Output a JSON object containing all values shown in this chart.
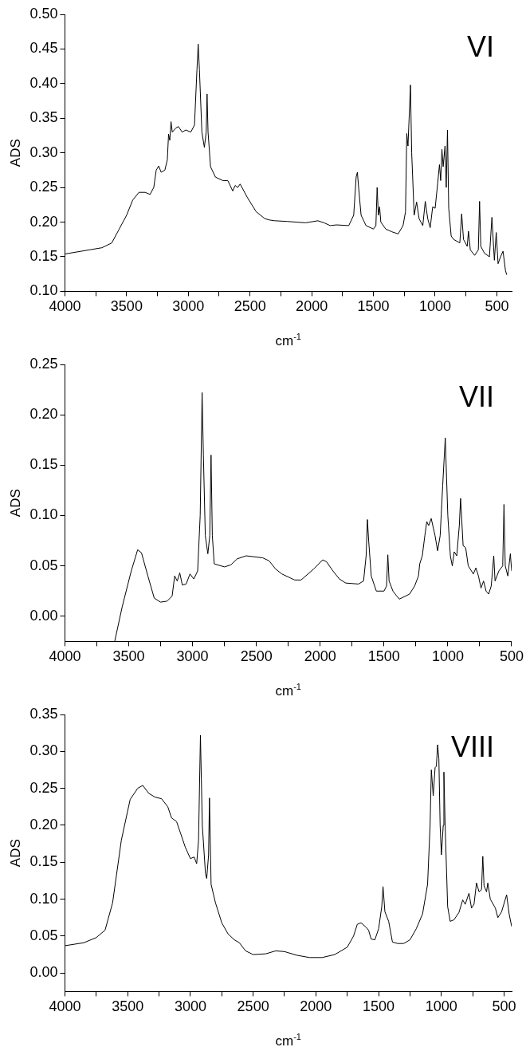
{
  "chart_data": [
    {
      "type": "line",
      "title": "VI",
      "xlabel": "cm$^{-1}$",
      "ylabel": "ADS",
      "xlim": [
        4000,
        380
      ],
      "ylim": [
        0.1,
        0.5
      ],
      "xticks": [
        4000,
        {
          "value": 3750,
          "label": null
        },
        3500,
        {
          "value": 3250,
          "label": null
        },
        3000,
        {
          "value": 2750,
          "label": null
        },
        2500,
        {
          "value": 2250,
          "label": null
        },
        2000,
        {
          "value": 1750,
          "label": null
        },
        1500,
        {
          "value": 1250,
          "label": null
        },
        1000,
        {
          "value": 750,
          "label": null
        },
        500
      ],
      "yticks": [
        {
          "value": 0.1,
          "label": "0.10"
        },
        0.15,
        {
          "value": 0.2,
          "label": "0.20"
        },
        0.25,
        {
          "value": 0.3,
          "label": "0.30"
        },
        0.35,
        {
          "value": 0.4,
          "label": "0.40"
        },
        0.45,
        {
          "value": 0.5,
          "label": "0.50"
        }
      ],
      "series": [
        {
          "color": "#000000",
          "x": [
            4000,
            3800,
            3700,
            3620,
            3560,
            3500,
            3450,
            3400,
            3350,
            3310,
            3280,
            3260,
            3240,
            3220,
            3190,
            3170,
            3160,
            3150,
            3140,
            3130,
            3100,
            3080,
            3050,
            3020,
            2980,
            2950,
            2930,
            2920,
            2910,
            2890,
            2870,
            2855,
            2848,
            2840,
            2820,
            2780,
            2720,
            2680,
            2640,
            2620,
            2600,
            2580,
            2520,
            2450,
            2380,
            2340,
            2300,
            2200,
            2050,
            1950,
            1900,
            1850,
            1800,
            1700,
            1660,
            1640,
            1630,
            1620,
            1600,
            1560,
            1500,
            1480,
            1470,
            1460,
            1450,
            1440,
            1400,
            1350,
            1300,
            1260,
            1240,
            1230,
            1220,
            1200,
            1190,
            1170,
            1150,
            1130,
            1100,
            1080,
            1060,
            1040,
            1020,
            1000,
            980,
            965,
            955,
            945,
            935,
            920,
            910,
            900,
            890,
            870,
            850,
            800,
            785,
            770,
            740,
            730,
            715,
            680,
            650,
            640,
            630,
            600,
            560,
            540,
            520,
            505,
            490,
            470,
            450,
            430,
            420
          ],
          "values": [
            0.154,
            0.16,
            0.163,
            0.17,
            0.19,
            0.21,
            0.232,
            0.243,
            0.243,
            0.24,
            0.25,
            0.275,
            0.281,
            0.272,
            0.275,
            0.29,
            0.327,
            0.318,
            0.345,
            0.33,
            0.336,
            0.338,
            0.33,
            0.333,
            0.33,
            0.34,
            0.42,
            0.457,
            0.42,
            0.33,
            0.308,
            0.33,
            0.385,
            0.33,
            0.28,
            0.265,
            0.26,
            0.26,
            0.245,
            0.253,
            0.25,
            0.255,
            0.235,
            0.215,
            0.205,
            0.203,
            0.202,
            0.201,
            0.199,
            0.202,
            0.199,
            0.195,
            0.196,
            0.195,
            0.21,
            0.265,
            0.272,
            0.25,
            0.21,
            0.195,
            0.19,
            0.195,
            0.25,
            0.21,
            0.222,
            0.2,
            0.19,
            0.186,
            0.183,
            0.195,
            0.215,
            0.328,
            0.31,
            0.398,
            0.3,
            0.21,
            0.229,
            0.205,
            0.195,
            0.23,
            0.205,
            0.192,
            0.222,
            0.22,
            0.255,
            0.283,
            0.26,
            0.305,
            0.28,
            0.31,
            0.25,
            0.333,
            0.22,
            0.18,
            0.175,
            0.17,
            0.212,
            0.175,
            0.165,
            0.187,
            0.16,
            0.152,
            0.16,
            0.23,
            0.165,
            0.155,
            0.15,
            0.207,
            0.145,
            0.185,
            0.14,
            0.15,
            0.158,
            0.13,
            0.124
          ]
        }
      ]
    },
    {
      "type": "line",
      "title": "VII",
      "xlabel": "cm$^{-1}$",
      "ylabel": "ADS",
      "xlim": [
        4000,
        500
      ],
      "ylim": [
        -0.025,
        0.25
      ],
      "xticks": [
        4000,
        {
          "value": 3750,
          "label": null
        },
        3500,
        {
          "value": 3250,
          "label": null
        },
        3000,
        {
          "value": 2750,
          "label": null
        },
        2500,
        {
          "value": 2250,
          "label": null
        },
        2000,
        {
          "value": 1750,
          "label": null
        },
        1500,
        {
          "value": 1250,
          "label": null
        },
        1000,
        {
          "value": 750,
          "label": null
        },
        500
      ],
      "yticks": [
        {
          "value": 0,
          "label": "0.00"
        },
        0.05,
        {
          "value": 0.1,
          "label": "0.10"
        },
        0.15,
        {
          "value": 0.2,
          "label": "0.20"
        },
        0.25
      ],
      "series": [
        {
          "color": "#000000",
          "x": [
            3610,
            3550,
            3480,
            3430,
            3400,
            3350,
            3300,
            3250,
            3200,
            3160,
            3140,
            3120,
            3100,
            3080,
            3050,
            3020,
            2990,
            2960,
            2940,
            2925,
            2915,
            2900,
            2880,
            2865,
            2855,
            2845,
            2830,
            2750,
            2700,
            2650,
            2580,
            2450,
            2400,
            2350,
            2300,
            2200,
            2150,
            2050,
            1980,
            1950,
            1900,
            1850,
            1800,
            1700,
            1660,
            1640,
            1630,
            1620,
            1600,
            1560,
            1500,
            1480,
            1470,
            1460,
            1430,
            1400,
            1380,
            1300,
            1260,
            1230,
            1220,
            1200,
            1180,
            1165,
            1150,
            1130,
            1100,
            1080,
            1060,
            1040,
            1020,
            1000,
            980,
            965,
            950,
            930,
            910,
            900,
            880,
            860,
            840,
            800,
            780,
            760,
            740,
            720,
            700,
            680,
            660,
            640,
            630,
            600,
            570,
            560,
            550,
            530,
            510,
            500
          ],
          "values": [
            -0.025,
            0.01,
            0.045,
            0.066,
            0.063,
            0.04,
            0.018,
            0.014,
            0.015,
            0.02,
            0.04,
            0.035,
            0.043,
            0.031,
            0.032,
            0.042,
            0.037,
            0.045,
            0.1,
            0.222,
            0.16,
            0.08,
            0.062,
            0.08,
            0.16,
            0.08,
            0.052,
            0.049,
            0.051,
            0.057,
            0.06,
            0.058,
            0.055,
            0.047,
            0.042,
            0.036,
            0.036,
            0.047,
            0.056,
            0.054,
            0.045,
            0.037,
            0.033,
            0.032,
            0.035,
            0.06,
            0.096,
            0.075,
            0.04,
            0.025,
            0.025,
            0.03,
            0.061,
            0.035,
            0.025,
            0.02,
            0.017,
            0.022,
            0.03,
            0.04,
            0.052,
            0.06,
            0.08,
            0.094,
            0.09,
            0.097,
            0.08,
            0.065,
            0.08,
            0.13,
            0.177,
            0.1,
            0.06,
            0.05,
            0.064,
            0.06,
            0.09,
            0.117,
            0.07,
            0.068,
            0.05,
            0.042,
            0.048,
            0.04,
            0.028,
            0.035,
            0.025,
            0.022,
            0.03,
            0.06,
            0.035,
            0.045,
            0.05,
            0.111,
            0.05,
            0.04,
            0.062,
            0.045
          ]
        }
      ]
    },
    {
      "type": "line",
      "title": "VIII",
      "xlabel": "cm$^{-1}$",
      "ylabel": "ADS",
      "xlim": [
        4000,
        440
      ],
      "ylim": [
        -0.025,
        0.35
      ],
      "xticks": [
        4000,
        {
          "value": 3750,
          "label": null
        },
        3500,
        {
          "value": 3250,
          "label": null
        },
        3000,
        {
          "value": 2750,
          "label": null
        },
        2500,
        {
          "value": 2250,
          "label": null
        },
        2000,
        {
          "value": 1750,
          "label": null
        },
        1500,
        {
          "value": 1250,
          "label": null
        },
        1000,
        {
          "value": 750,
          "label": null
        },
        500
      ],
      "yticks": [
        {
          "value": 0,
          "label": "0.00"
        },
        0.05,
        {
          "value": 0.1,
          "label": "0.10"
        },
        0.15,
        {
          "value": 0.2,
          "label": "0.20"
        },
        0.25,
        {
          "value": 0.3,
          "label": "0.30"
        },
        0.35
      ],
      "series": [
        {
          "color": "#000000",
          "x": [
            4000,
            3850,
            3750,
            3680,
            3620,
            3550,
            3480,
            3420,
            3380,
            3330,
            3280,
            3230,
            3180,
            3150,
            3110,
            3080,
            3040,
            3000,
            2970,
            2950,
            2935,
            2920,
            2905,
            2880,
            2870,
            2855,
            2848,
            2835,
            2800,
            2750,
            2700,
            2650,
            2610,
            2560,
            2500,
            2400,
            2320,
            2250,
            2150,
            2050,
            1950,
            1850,
            1750,
            1700,
            1670,
            1640,
            1600,
            1580,
            1560,
            1530,
            1500,
            1475,
            1465,
            1450,
            1420,
            1390,
            1350,
            1300,
            1250,
            1200,
            1150,
            1110,
            1090,
            1080,
            1065,
            1050,
            1040,
            1030,
            1020,
            1010,
            1000,
            985,
            980,
            970,
            950,
            930,
            900,
            860,
            830,
            810,
            780,
            760,
            740,
            720,
            700,
            680,
            670,
            660,
            640,
            630,
            610,
            570,
            550,
            520,
            480,
            460,
            440
          ],
          "values": [
            0.037,
            0.041,
            0.048,
            0.058,
            0.095,
            0.18,
            0.235,
            0.25,
            0.254,
            0.243,
            0.238,
            0.236,
            0.225,
            0.21,
            0.205,
            0.19,
            0.17,
            0.155,
            0.157,
            0.148,
            0.18,
            0.322,
            0.2,
            0.135,
            0.128,
            0.16,
            0.237,
            0.12,
            0.095,
            0.068,
            0.053,
            0.045,
            0.041,
            0.03,
            0.025,
            0.026,
            0.03,
            0.029,
            0.024,
            0.021,
            0.021,
            0.025,
            0.035,
            0.05,
            0.066,
            0.068,
            0.062,
            0.058,
            0.046,
            0.045,
            0.06,
            0.09,
            0.117,
            0.083,
            0.07,
            0.042,
            0.04,
            0.04,
            0.045,
            0.06,
            0.08,
            0.12,
            0.2,
            0.275,
            0.24,
            0.278,
            0.28,
            0.309,
            0.29,
            0.2,
            0.16,
            0.2,
            0.272,
            0.2,
            0.09,
            0.07,
            0.072,
            0.082,
            0.099,
            0.093,
            0.108,
            0.088,
            0.093,
            0.122,
            0.11,
            0.113,
            0.158,
            0.118,
            0.11,
            0.122,
            0.1,
            0.088,
            0.075,
            0.083,
            0.106,
            0.08,
            0.063
          ]
        }
      ]
    }
  ]
}
